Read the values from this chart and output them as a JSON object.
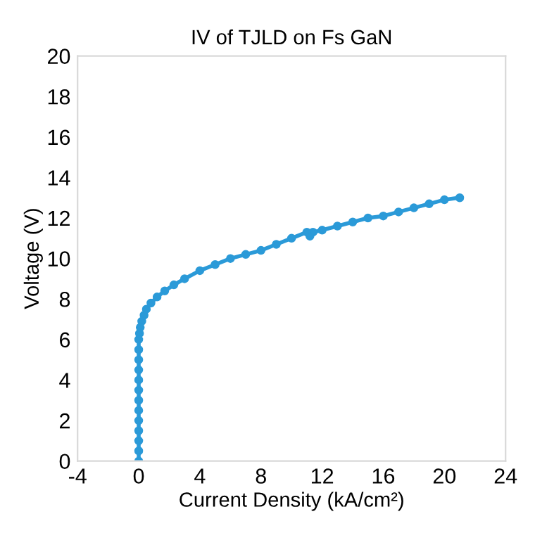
{
  "chart_data": {
    "type": "line",
    "title": "IV of TJLD on Fs GaN",
    "xlabel": "Current Density (kA/cm²)",
    "ylabel": "Voltage (V)",
    "series": [
      {
        "color": "#2b9ad8",
        "x": [
          0,
          0,
          0,
          0,
          0,
          0,
          0,
          0,
          0,
          0,
          0,
          0,
          0,
          0.05,
          0.1,
          0.2,
          0.35,
          0.5,
          0.8,
          1.2,
          1.7,
          2.3,
          3,
          4,
          5,
          6,
          7,
          8,
          9,
          10,
          11,
          11.2,
          11.4,
          12,
          13,
          14,
          15,
          16,
          17,
          18,
          19,
          20,
          21
        ],
        "values": [
          0,
          0.5,
          1,
          1.5,
          2,
          2.5,
          3,
          3.5,
          4,
          4.5,
          5,
          5.5,
          6,
          6.3,
          6.6,
          6.9,
          7.2,
          7.5,
          7.8,
          8.1,
          8.4,
          8.7,
          9,
          9.4,
          9.7,
          10,
          10.2,
          10.4,
          10.7,
          11,
          11.3,
          11.1,
          11.3,
          11.4,
          11.6,
          11.8,
          12,
          12.1,
          12.3,
          12.5,
          12.7,
          12.9,
          13
        ]
      }
    ],
    "xlim": [
      -4,
      24
    ],
    "xticks": [
      -4,
      0,
      4,
      8,
      12,
      16,
      20,
      24
    ],
    "ylim": [
      0,
      20
    ],
    "yticks": [
      0,
      2,
      4,
      6,
      8,
      10,
      12,
      14,
      16,
      18,
      20
    ],
    "marker": "circle",
    "grid": false,
    "legend": false
  }
}
